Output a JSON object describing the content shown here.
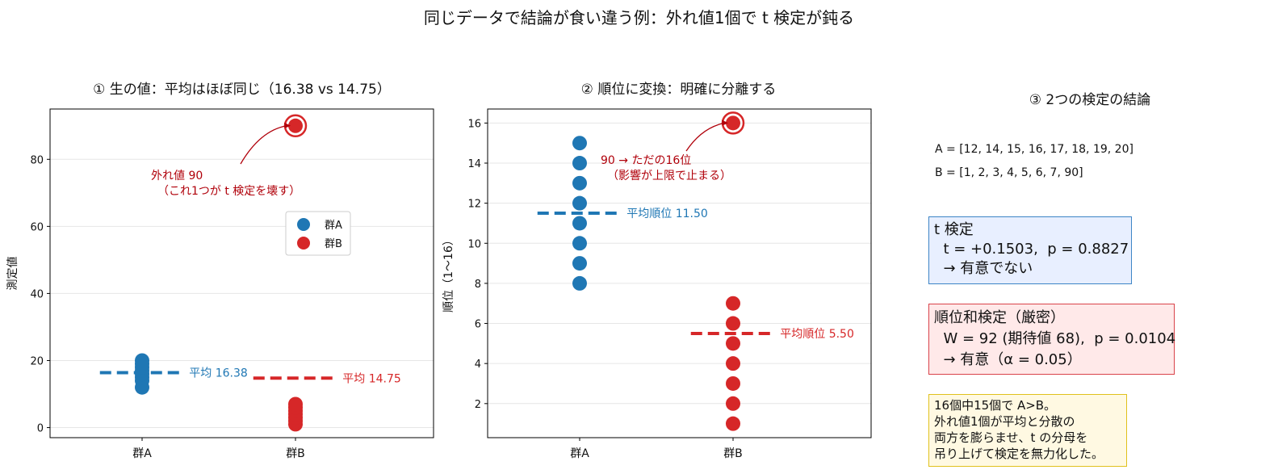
{
  "title": "同じデータで結論が食い違う例：外れ値1個で t 検定が鈍る",
  "colors": {
    "A": "#1f77b4",
    "B": "#d62728",
    "annot": "#b0000a",
    "grid": "#e6e6e6"
  },
  "chart_data": [
    {
      "type": "scatter",
      "title": "① 生の値：平均はほぼ同じ（16.38 vs 14.75）",
      "categories": [
        "群A",
        "群B"
      ],
      "ylabel": "測定値",
      "ylim": [
        -3,
        95
      ],
      "yticks": [
        0,
        20,
        40,
        60,
        80
      ],
      "grid": true,
      "legend": {
        "placement": "center-right",
        "entries": [
          "群A",
          "群B"
        ]
      },
      "series": [
        {
          "name": "群A",
          "values": [
            12,
            14,
            15,
            16,
            17,
            18,
            19,
            20
          ]
        },
        {
          "name": "群B",
          "values": [
            1,
            2,
            3,
            4,
            5,
            6,
            7,
            90
          ]
        }
      ],
      "means": [
        {
          "series": "群A",
          "value": 16.38,
          "label": "平均 16.38"
        },
        {
          "series": "群B",
          "value": 14.75,
          "label": "平均 14.75"
        }
      ],
      "annotation": {
        "text": [
          "外れ値 90",
          "（これ1つが t 検定を壊す）"
        ],
        "target": {
          "category": "群B",
          "value": 90
        }
      }
    },
    {
      "type": "scatter",
      "title": "② 順位に変換：明確に分離する",
      "categories": [
        "群A",
        "群B"
      ],
      "ylabel": "順位（1〜16）",
      "ylim": [
        0.3,
        16.7
      ],
      "yticks": [
        2,
        4,
        6,
        8,
        10,
        12,
        14,
        16
      ],
      "grid": true,
      "series": [
        {
          "name": "群A",
          "values": [
            8,
            9,
            10,
            11,
            12,
            13,
            14,
            15
          ]
        },
        {
          "name": "群B",
          "values": [
            1,
            2,
            3,
            4,
            5,
            6,
            7,
            16
          ]
        }
      ],
      "means": [
        {
          "series": "群A",
          "value": 11.5,
          "label": "平均順位 11.50"
        },
        {
          "series": "群B",
          "value": 5.5,
          "label": "平均順位 5.50"
        }
      ],
      "annotation": {
        "text": [
          "90 → ただの16位",
          "（影響が上限で止まる）"
        ],
        "target": {
          "category": "群B",
          "value": 16
        }
      }
    }
  ],
  "panel3": {
    "title": "③ 2つの検定の結論",
    "data_a": "A = [12, 14, 15, 16, 17, 18, 19, 20]",
    "data_b": "B = [1, 2, 3, 4, 5, 6, 7, 90]",
    "t_test": "t 検定\n  t = +0.1503,  p = 0.8827\n  → 有意でない",
    "rank_test": "順位和検定（厳密）\n  W = 92 (期待値 68),  p = 0.0104\n  → 有意（α = 0.05）",
    "note": "16個中15個で A>B。\n外れ値1個が平均と分散の\n両方を膨らませ、t の分母を\n吊り上げて検定を無力化した。"
  }
}
